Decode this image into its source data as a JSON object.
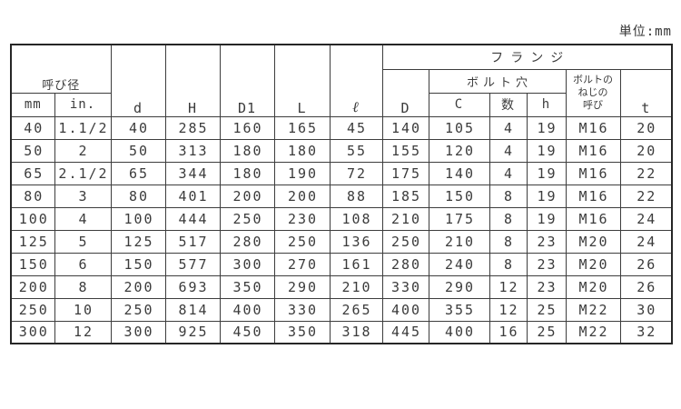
{
  "unit_label": "単位:mm",
  "colors": {
    "background": "#ffffff",
    "text": "#3b3b3b",
    "border_outer": "#262626",
    "border_inner": "#3d3d3d"
  },
  "table": {
    "header": {
      "nominal_diameter": "呼び径",
      "mm": "mm",
      "in": "in.",
      "d": "d",
      "H": "H",
      "D1": "D1",
      "L": "L",
      "ell": "ℓ",
      "flange": "フランジ",
      "D": "D",
      "bolt_holes": "ボルト穴",
      "C": "C",
      "count": "数",
      "h": "h",
      "bolt_thread_line1": "ボルトの",
      "bolt_thread_line2": "ねじの",
      "bolt_thread_line3": "呼び",
      "t": "t"
    },
    "column_keys": [
      "mm",
      "in",
      "d",
      "H",
      "D1",
      "L",
      "ell",
      "D",
      "C",
      "count",
      "h",
      "bolt-thread",
      "t"
    ],
    "rows": [
      [
        "40",
        "1.1/2",
        "40",
        "285",
        "160",
        "165",
        "45",
        "140",
        "105",
        "4",
        "19",
        "M16",
        "20"
      ],
      [
        "50",
        "2",
        "50",
        "313",
        "180",
        "180",
        "55",
        "155",
        "120",
        "4",
        "19",
        "M16",
        "20"
      ],
      [
        "65",
        "2.1/2",
        "65",
        "344",
        "180",
        "190",
        "72",
        "175",
        "140",
        "4",
        "19",
        "M16",
        "22"
      ],
      [
        "80",
        "3",
        "80",
        "401",
        "200",
        "200",
        "88",
        "185",
        "150",
        "8",
        "19",
        "M16",
        "22"
      ],
      [
        "100",
        "4",
        "100",
        "444",
        "250",
        "230",
        "108",
        "210",
        "175",
        "8",
        "19",
        "M16",
        "24"
      ],
      [
        "125",
        "5",
        "125",
        "517",
        "280",
        "250",
        "136",
        "250",
        "210",
        "8",
        "23",
        "M20",
        "24"
      ],
      [
        "150",
        "6",
        "150",
        "577",
        "300",
        "270",
        "161",
        "280",
        "240",
        "8",
        "23",
        "M20",
        "26"
      ],
      [
        "200",
        "8",
        "200",
        "693",
        "350",
        "290",
        "210",
        "330",
        "290",
        "12",
        "23",
        "M20",
        "26"
      ],
      [
        "250",
        "10",
        "250",
        "814",
        "400",
        "330",
        "265",
        "400",
        "355",
        "12",
        "25",
        "M22",
        "30"
      ],
      [
        "300",
        "12",
        "300",
        "925",
        "450",
        "350",
        "318",
        "445",
        "400",
        "16",
        "25",
        "M22",
        "32"
      ]
    ]
  }
}
